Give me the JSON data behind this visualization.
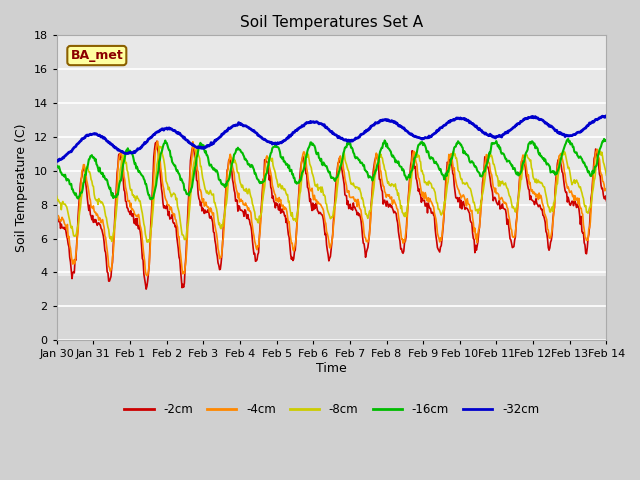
{
  "title": "Soil Temperatures Set A",
  "xlabel": "Time",
  "ylabel": "Soil Temperature (C)",
  "annotation": "BA_met",
  "ylim": [
    0,
    18
  ],
  "yticks": [
    0,
    2,
    4,
    6,
    8,
    10,
    12,
    14,
    16,
    18
  ],
  "xtick_labels": [
    "Jan 30",
    "Jan 31",
    "Feb 1",
    "Feb 2",
    "Feb 3",
    "Feb 4",
    "Feb 5",
    "Feb 6",
    "Feb 7",
    "Feb 8",
    "Feb 9",
    "Feb 10",
    "Feb 11",
    "Feb 12",
    "Feb 13",
    "Feb 14"
  ],
  "series_colors": {
    "-2cm": "#cc0000",
    "-4cm": "#ff8800",
    "-8cm": "#cccc00",
    "-16cm": "#00bb00",
    "-32cm": "#0000cc"
  },
  "series_linewidths": {
    "-2cm": 1.2,
    "-4cm": 1.2,
    "-8cm": 1.2,
    "-16cm": 1.5,
    "-32cm": 2.0
  },
  "legend_order": [
    "-2cm",
    "-4cm",
    "-8cm",
    "-16cm",
    "-32cm"
  ],
  "fig_bg_color": "#d0d0d0",
  "plot_bg_upper": "#e8e8e8",
  "plot_bg_lower": "#d8d8d8",
  "title_fontsize": 11,
  "axis_fontsize": 9,
  "tick_fontsize": 8
}
